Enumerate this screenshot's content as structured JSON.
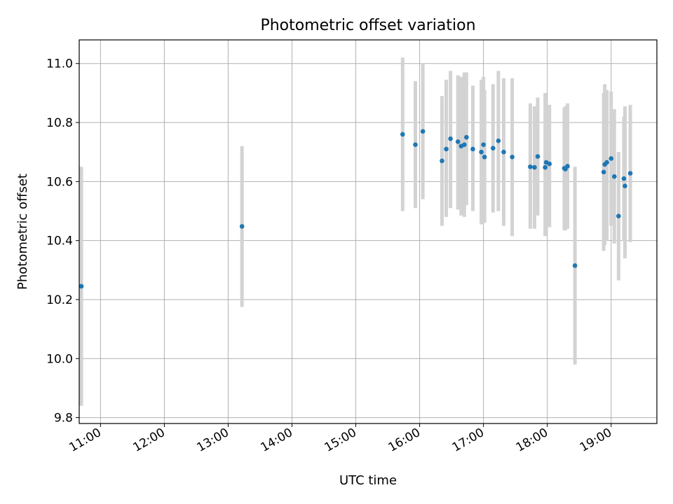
{
  "chart_data": {
    "type": "scatter",
    "title": "Photometric offset variation",
    "xlabel": "UTC time",
    "ylabel": "Photometric offset",
    "xlim": [
      "10:40",
      "19:43"
    ],
    "ylim": [
      9.78,
      11.08
    ],
    "x_ticks": [
      "11:00",
      "12:00",
      "13:00",
      "14:00",
      "15:00",
      "16:00",
      "17:00",
      "18:00",
      "19:00"
    ],
    "y_ticks": [
      "9.8",
      "10.0",
      "10.2",
      "10.4",
      "10.6",
      "10.8",
      "11.0"
    ],
    "grid": true,
    "point_color": "#1f77b4",
    "errorbar_color": "#d3d3d3",
    "points": [
      {
        "x": "10:42",
        "y": 10.245,
        "ylow": 9.84,
        "yhigh": 10.65
      },
      {
        "x": "13:13",
        "y": 10.448,
        "ylow": 10.175,
        "yhigh": 10.72
      },
      {
        "x": "15:44",
        "y": 10.76,
        "ylow": 10.5,
        "yhigh": 11.02
      },
      {
        "x": "15:56",
        "y": 10.725,
        "ylow": 10.51,
        "yhigh": 10.94
      },
      {
        "x": "16:03",
        "y": 10.77,
        "ylow": 10.54,
        "yhigh": 11.0
      },
      {
        "x": "16:21",
        "y": 10.67,
        "ylow": 10.45,
        "yhigh": 10.89
      },
      {
        "x": "16:25",
        "y": 10.71,
        "ylow": 10.48,
        "yhigh": 10.945
      },
      {
        "x": "16:29",
        "y": 10.745,
        "ylow": 10.51,
        "yhigh": 10.975
      },
      {
        "x": "16:36",
        "y": 10.735,
        "ylow": 10.505,
        "yhigh": 10.96
      },
      {
        "x": "16:39",
        "y": 10.72,
        "ylow": 10.485,
        "yhigh": 10.955
      },
      {
        "x": "16:42",
        "y": 10.725,
        "ylow": 10.48,
        "yhigh": 10.97
      },
      {
        "x": "16:44",
        "y": 10.75,
        "ylow": 10.52,
        "yhigh": 10.97
      },
      {
        "x": "16:50",
        "y": 10.71,
        "ylow": 10.5,
        "yhigh": 10.925
      },
      {
        "x": "16:58",
        "y": 10.7,
        "ylow": 10.455,
        "yhigh": 10.945
      },
      {
        "x": "17:00",
        "y": 10.725,
        "ylow": 10.46,
        "yhigh": 10.955
      },
      {
        "x": "17:01",
        "y": 10.683,
        "ylow": 10.46,
        "yhigh": 10.91
      },
      {
        "x": "17:09",
        "y": 10.713,
        "ylow": 10.495,
        "yhigh": 10.93
      },
      {
        "x": "17:14",
        "y": 10.738,
        "ylow": 10.5,
        "yhigh": 10.975
      },
      {
        "x": "17:19",
        "y": 10.7,
        "ylow": 10.45,
        "yhigh": 10.95
      },
      {
        "x": "17:27",
        "y": 10.683,
        "ylow": 10.415,
        "yhigh": 10.95
      },
      {
        "x": "17:44",
        "y": 10.65,
        "ylow": 10.44,
        "yhigh": 10.865
      },
      {
        "x": "17:48",
        "y": 10.648,
        "ylow": 10.44,
        "yhigh": 10.855
      },
      {
        "x": "17:51",
        "y": 10.685,
        "ylow": 10.485,
        "yhigh": 10.885
      },
      {
        "x": "17:58",
        "y": 10.648,
        "ylow": 10.415,
        "yhigh": 10.9
      },
      {
        "x": "17:59",
        "y": 10.665,
        "ylow": 10.43,
        "yhigh": 10.88
      },
      {
        "x": "18:02",
        "y": 10.66,
        "ylow": 10.445,
        "yhigh": 10.86
      },
      {
        "x": "18:16",
        "y": 10.645,
        "ylow": 10.435,
        "yhigh": 10.85
      },
      {
        "x": "18:17",
        "y": 10.642,
        "ylow": 10.435,
        "yhigh": 10.855
      },
      {
        "x": "18:19",
        "y": 10.652,
        "ylow": 10.44,
        "yhigh": 10.865
      },
      {
        "x": "18:26",
        "y": 10.315,
        "ylow": 9.98,
        "yhigh": 10.65
      },
      {
        "x": "18:53",
        "y": 10.632,
        "ylow": 10.365,
        "yhigh": 10.9
      },
      {
        "x": "18:54",
        "y": 10.658,
        "ylow": 10.385,
        "yhigh": 10.93
      },
      {
        "x": "18:56",
        "y": 10.665,
        "ylow": 10.4,
        "yhigh": 10.91
      },
      {
        "x": "19:00",
        "y": 10.678,
        "ylow": 10.45,
        "yhigh": 10.905
      },
      {
        "x": "19:03",
        "y": 10.617,
        "ylow": 10.39,
        "yhigh": 10.845
      },
      {
        "x": "19:07",
        "y": 10.483,
        "ylow": 10.265,
        "yhigh": 10.7
      },
      {
        "x": "19:12",
        "y": 10.61,
        "ylow": 10.4,
        "yhigh": 10.82
      },
      {
        "x": "19:13",
        "y": 10.585,
        "ylow": 10.34,
        "yhigh": 10.855
      },
      {
        "x": "19:18",
        "y": 10.628,
        "ylow": 10.395,
        "yhigh": 10.86
      }
    ]
  }
}
